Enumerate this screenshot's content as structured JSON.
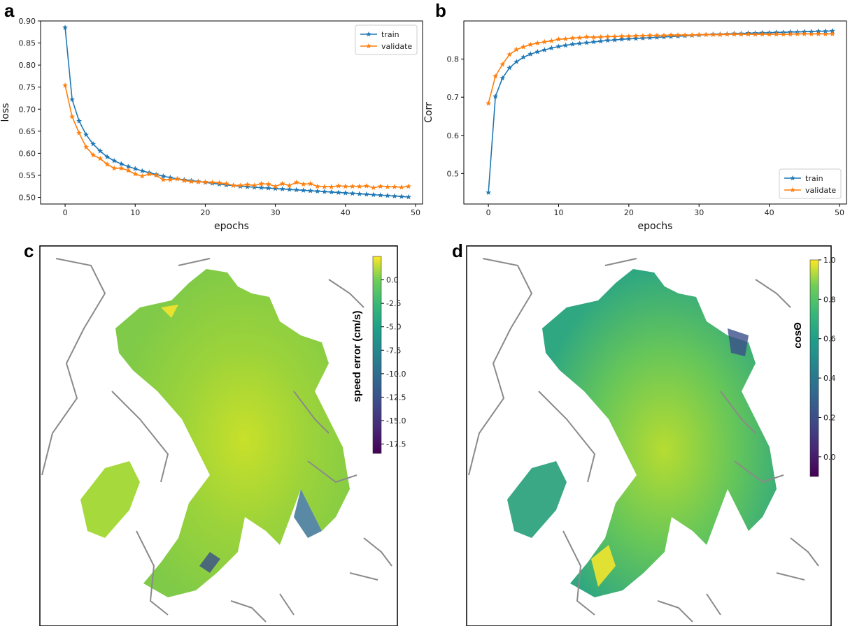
{
  "panels": [
    "a",
    "b",
    "c",
    "d"
  ],
  "colors": {
    "train": "#1f77b4",
    "validate": "#ff7f0e",
    "coast": "#8a8a8a",
    "land": "#ffffff"
  },
  "chart_data": [
    {
      "panel": "a",
      "type": "line",
      "xlabel": "epochs",
      "ylabel": "loss",
      "xlim": [
        -3.5,
        51
      ],
      "ylim": [
        0.485,
        0.9
      ],
      "xticks": [
        0,
        10,
        20,
        30,
        40,
        50
      ],
      "yticks": [
        0.5,
        0.55,
        0.6,
        0.65,
        0.7,
        0.75,
        0.8,
        0.85,
        0.9
      ],
      "ytick_labels": [
        "0.50",
        "0.55",
        "0.60",
        "0.65",
        "0.70",
        "0.75",
        "0.80",
        "0.85",
        "0.90"
      ],
      "legend_placement": "top-right",
      "grid": false,
      "series": [
        {
          "name": "train",
          "color": "#1f77b4",
          "marker": "star",
          "x": [
            0,
            1,
            2,
            3,
            4,
            5,
            6,
            7,
            8,
            9,
            10,
            11,
            12,
            13,
            14,
            15,
            16,
            17,
            18,
            19,
            20,
            21,
            22,
            23,
            24,
            25,
            26,
            27,
            28,
            29,
            30,
            31,
            32,
            33,
            34,
            35,
            36,
            37,
            38,
            39,
            40,
            41,
            42,
            43,
            44,
            45,
            46,
            47,
            48,
            49
          ],
          "y": [
            0.885,
            0.722,
            0.673,
            0.642,
            0.621,
            0.605,
            0.592,
            0.583,
            0.576,
            0.57,
            0.565,
            0.56,
            0.556,
            0.552,
            0.548,
            0.545,
            0.542,
            0.54,
            0.538,
            0.536,
            0.534,
            0.532,
            0.53,
            0.528,
            0.527,
            0.525,
            0.524,
            0.523,
            0.522,
            0.521,
            0.52,
            0.519,
            0.518,
            0.517,
            0.516,
            0.515,
            0.514,
            0.513,
            0.512,
            0.511,
            0.51,
            0.509,
            0.508,
            0.507,
            0.506,
            0.505,
            0.504,
            0.503,
            0.502,
            0.501
          ]
        },
        {
          "name": "validate",
          "color": "#ff7f0e",
          "marker": "star",
          "x": [
            0,
            1,
            2,
            3,
            4,
            5,
            6,
            7,
            8,
            9,
            10,
            11,
            12,
            13,
            14,
            15,
            16,
            17,
            18,
            19,
            20,
            21,
            22,
            23,
            24,
            25,
            26,
            27,
            28,
            29,
            30,
            31,
            32,
            33,
            34,
            35,
            36,
            37,
            38,
            39,
            40,
            41,
            42,
            43,
            44,
            45,
            46,
            47,
            48,
            49
          ],
          "y": [
            0.754,
            0.683,
            0.646,
            0.614,
            0.596,
            0.588,
            0.575,
            0.566,
            0.566,
            0.561,
            0.553,
            0.548,
            0.553,
            0.55,
            0.54,
            0.54,
            0.542,
            0.538,
            0.536,
            0.535,
            0.535,
            0.534,
            0.533,
            0.531,
            0.527,
            0.527,
            0.529,
            0.527,
            0.531,
            0.53,
            0.525,
            0.531,
            0.527,
            0.534,
            0.53,
            0.531,
            0.525,
            0.524,
            0.524,
            0.526,
            0.525,
            0.525,
            0.525,
            0.526,
            0.522,
            0.525,
            0.524,
            0.524,
            0.523,
            0.525
          ]
        }
      ]
    },
    {
      "panel": "b",
      "type": "line",
      "xlabel": "epochs",
      "ylabel": "Corr",
      "xlim": [
        -3.5,
        51
      ],
      "ylim": [
        0.42,
        0.9
      ],
      "xticks": [
        0,
        10,
        20,
        30,
        40,
        50
      ],
      "yticks": [
        0.5,
        0.6,
        0.7,
        0.8
      ],
      "ytick_labels": [
        "0.5",
        "0.6",
        "0.7",
        "0.8"
      ],
      "legend_placement": "bottom-right",
      "grid": false,
      "series": [
        {
          "name": "train",
          "color": "#1f77b4",
          "marker": "star",
          "x": [
            0,
            1,
            2,
            3,
            4,
            5,
            6,
            7,
            8,
            9,
            10,
            11,
            12,
            13,
            14,
            15,
            16,
            17,
            18,
            19,
            20,
            21,
            22,
            23,
            24,
            25,
            26,
            27,
            28,
            29,
            30,
            31,
            32,
            33,
            34,
            35,
            36,
            37,
            38,
            39,
            40,
            41,
            42,
            43,
            44,
            45,
            46,
            47,
            48,
            49
          ],
          "y": [
            0.45,
            0.702,
            0.75,
            0.777,
            0.793,
            0.805,
            0.813,
            0.819,
            0.824,
            0.829,
            0.833,
            0.836,
            0.839,
            0.841,
            0.843,
            0.845,
            0.847,
            0.849,
            0.85,
            0.852,
            0.853,
            0.854,
            0.855,
            0.856,
            0.857,
            0.858,
            0.859,
            0.86,
            0.861,
            0.862,
            0.863,
            0.864,
            0.865,
            0.865,
            0.866,
            0.867,
            0.867,
            0.868,
            0.868,
            0.869,
            0.869,
            0.87,
            0.87,
            0.871,
            0.871,
            0.872,
            0.872,
            0.873,
            0.873,
            0.874
          ]
        },
        {
          "name": "validate",
          "color": "#ff7f0e",
          "marker": "star",
          "x": [
            0,
            1,
            2,
            3,
            4,
            5,
            6,
            7,
            8,
            9,
            10,
            11,
            12,
            13,
            14,
            15,
            16,
            17,
            18,
            19,
            20,
            21,
            22,
            23,
            24,
            25,
            26,
            27,
            28,
            29,
            30,
            31,
            32,
            33,
            34,
            35,
            36,
            37,
            38,
            39,
            40,
            41,
            42,
            43,
            44,
            45,
            46,
            47,
            48,
            49
          ],
          "y": [
            0.684,
            0.755,
            0.786,
            0.812,
            0.825,
            0.832,
            0.838,
            0.842,
            0.845,
            0.848,
            0.852,
            0.853,
            0.855,
            0.856,
            0.858,
            0.857,
            0.858,
            0.859,
            0.859,
            0.86,
            0.86,
            0.861,
            0.861,
            0.862,
            0.862,
            0.862,
            0.863,
            0.863,
            0.863,
            0.863,
            0.864,
            0.864,
            0.864,
            0.864,
            0.865,
            0.865,
            0.865,
            0.865,
            0.865,
            0.865,
            0.865,
            0.865,
            0.865,
            0.865,
            0.866,
            0.866,
            0.866,
            0.866,
            0.866,
            0.866
          ]
        }
      ]
    },
    {
      "panel": "c",
      "type": "heatmap",
      "colorbar_label": "speed error (cm/s)",
      "colormap": "viridis",
      "vmin": -18.5,
      "vmax": 2.5,
      "colorbar_ticks": [
        0.0,
        -2.5,
        -5.0,
        -7.5,
        -10.0,
        -12.5,
        -15.0,
        -17.5
      ],
      "colorbar_tick_labels": [
        "0.0",
        "-2.5",
        "-5.0",
        "-7.5",
        "-10.0",
        "-12.5",
        "-15.0",
        "-17.5"
      ],
      "typical_value": -4.0
    },
    {
      "panel": "d",
      "type": "heatmap",
      "colorbar_label": "cosΘ",
      "colormap": "viridis",
      "vmin": -0.1,
      "vmax": 1.0,
      "colorbar_ticks": [
        1.0,
        0.8,
        0.6,
        0.4,
        0.2,
        0.0
      ],
      "colorbar_tick_labels": [
        "1.0",
        "0.8",
        "0.6",
        "0.4",
        "0.2",
        "0.0"
      ],
      "typical_value": 0.7
    }
  ]
}
